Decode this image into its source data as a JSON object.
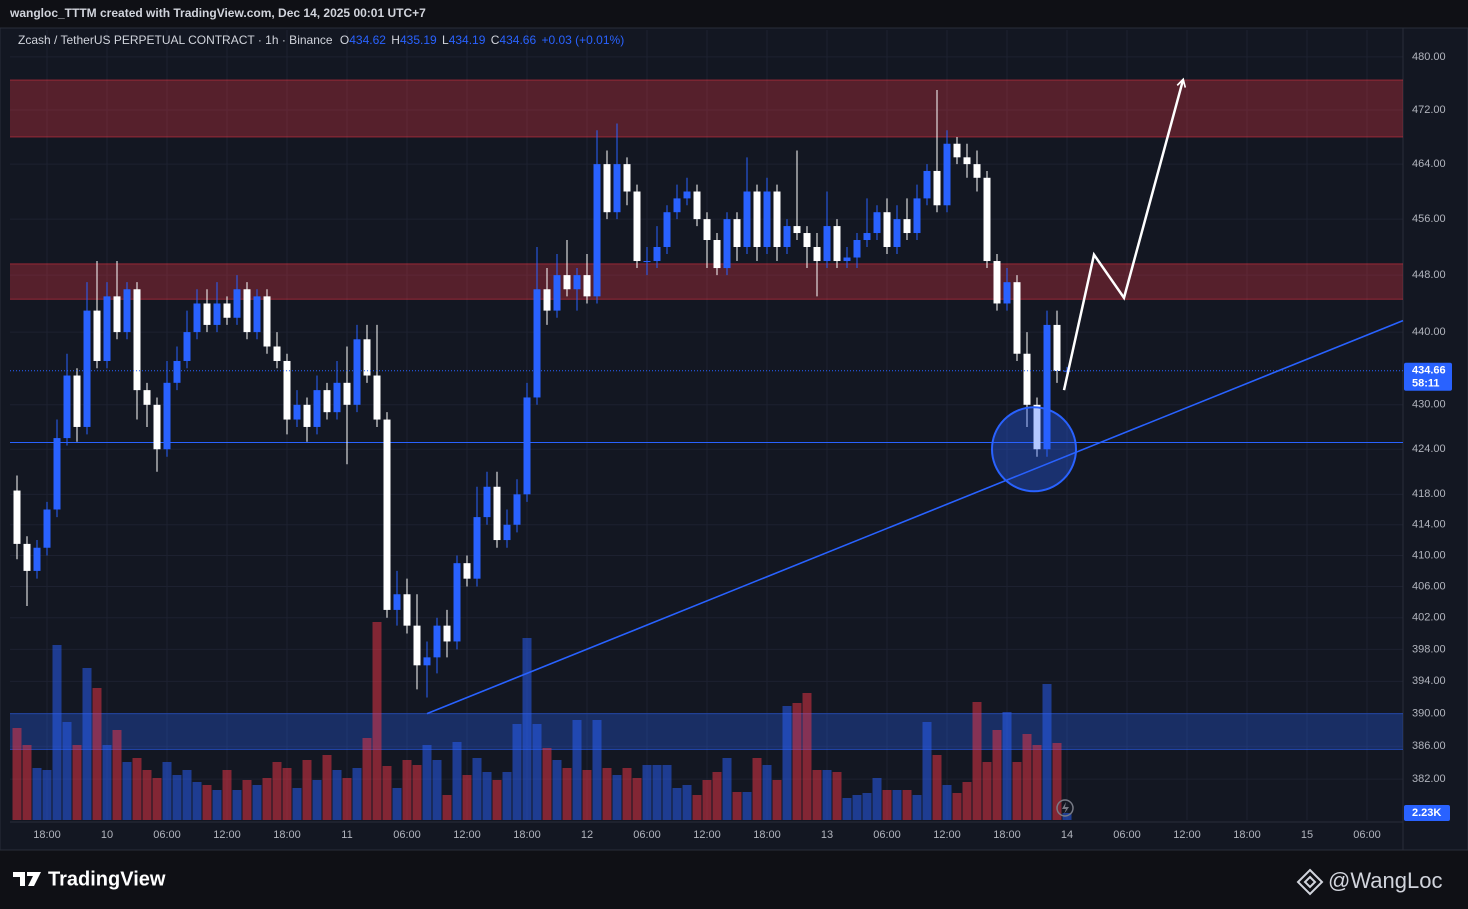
{
  "header": {
    "caption": "wangloc_TTTM created with TradingView.com, Dec 14, 2025 00:01 UTC+7"
  },
  "chart_data": {
    "type": "candlestick",
    "symbol": "Zcash / TetherUS PERPETUAL CONTRACT · 1h · Binance",
    "ohlc_letters": [
      "O",
      "H",
      "L",
      "C"
    ],
    "change_label": "+0.03 (+0.01%)",
    "countdown": "58:11",
    "volume_label": "2.23K",
    "log_scale": true,
    "grid": true,
    "up_color": "#2962ff",
    "down_color": "#ffffff",
    "volume_up_color": "#2962ff",
    "volume_down_color": "#f23645",
    "xlim": [
      -0.7,
      138.6
    ],
    "ylim": [
      377.1,
      484.1
    ],
    "volume_ylim": [
      0,
      252800
    ],
    "xticks": [
      {
        "value": 3,
        "label": "18:00"
      },
      {
        "value": 9,
        "label": "10"
      },
      {
        "value": 15,
        "label": "06:00"
      },
      {
        "value": 21,
        "label": "12:00"
      },
      {
        "value": 27,
        "label": "18:00"
      },
      {
        "value": 33,
        "label": "11"
      },
      {
        "value": 39,
        "label": "06:00"
      },
      {
        "value": 45,
        "label": "12:00"
      },
      {
        "value": 51,
        "label": "18:00"
      },
      {
        "value": 57,
        "label": "12"
      },
      {
        "value": 63,
        "label": "06:00"
      },
      {
        "value": 69,
        "label": "12:00"
      },
      {
        "value": 75,
        "label": "18:00"
      },
      {
        "value": 81,
        "label": "13"
      },
      {
        "value": 87,
        "label": "06:00"
      },
      {
        "value": 93,
        "label": "12:00"
      },
      {
        "value": 99,
        "label": "18:00"
      },
      {
        "value": 105,
        "label": "14"
      },
      {
        "value": 111,
        "label": "06:00"
      },
      {
        "value": 117,
        "label": "12:00"
      },
      {
        "value": 123,
        "label": "18:00"
      },
      {
        "value": 129,
        "label": "15"
      },
      {
        "value": 135,
        "label": "06:00"
      }
    ],
    "yticks": [
      {
        "value": 480,
        "label": "480.00"
      },
      {
        "value": 472,
        "label": "472.00"
      },
      {
        "value": 464,
        "label": "464.00"
      },
      {
        "value": 456,
        "label": "456.00"
      },
      {
        "value": 448,
        "label": "448.00"
      },
      {
        "value": 440,
        "label": "440.00"
      },
      {
        "value": 430,
        "label": "430.00"
      },
      {
        "value": 424,
        "label": "424.00"
      },
      {
        "value": 418,
        "label": "418.00"
      },
      {
        "value": 414,
        "label": "414.00"
      },
      {
        "value": 410,
        "label": "410.00"
      },
      {
        "value": 406,
        "label": "406.00"
      },
      {
        "value": 402,
        "label": "402.00"
      },
      {
        "value": 398,
        "label": "398.00"
      },
      {
        "value": 394,
        "label": "394.00"
      },
      {
        "value": 390,
        "label": "390.00"
      },
      {
        "value": 386,
        "label": "386.00"
      },
      {
        "value": 382,
        "label": "382.00"
      }
    ],
    "open": [
      418.5,
      411.5,
      408,
      411,
      416,
      425.5,
      434,
      427,
      443,
      436,
      445,
      440,
      446,
      432,
      430,
      424,
      433,
      436,
      440,
      444,
      441,
      444,
      442,
      446,
      440,
      445,
      438,
      436,
      428,
      430,
      427,
      432,
      429,
      433,
      430,
      439,
      434,
      428,
      403,
      405,
      401,
      396,
      397,
      401,
      399,
      409,
      407,
      415,
      419,
      412,
      414,
      418,
      431,
      446,
      443,
      448,
      446,
      448,
      445,
      464,
      457,
      464,
      460,
      450,
      450,
      452,
      457,
      459,
      460,
      456,
      453,
      449,
      456,
      452,
      460,
      452,
      460,
      452,
      455,
      454,
      452,
      450,
      455,
      450,
      450.5,
      453,
      454,
      457,
      452,
      456,
      454,
      459,
      463,
      458,
      467,
      465,
      464,
      462,
      450,
      444,
      447,
      437,
      430,
      424,
      441,
      434.62
    ],
    "high": [
      420.5,
      412.5,
      412,
      417,
      428,
      437,
      435,
      447,
      450,
      447,
      450,
      447,
      447,
      433,
      431,
      436,
      438,
      443,
      446,
      446,
      447,
      445,
      448,
      447,
      446,
      446,
      440,
      437,
      432,
      431,
      434,
      433,
      436,
      438,
      441,
      441,
      441,
      429,
      408,
      407,
      405,
      399,
      402,
      403,
      410,
      410,
      419,
      421,
      421,
      416,
      420,
      433,
      452,
      449,
      451,
      453,
      449,
      451,
      469,
      466,
      470,
      465,
      461,
      452,
      455,
      458,
      461,
      462,
      461,
      457,
      454,
      457,
      457,
      465,
      461,
      462,
      461,
      456,
      466,
      455,
      454,
      460,
      456,
      452,
      454,
      459,
      458,
      459,
      458,
      459,
      461,
      464,
      475,
      469,
      468,
      467,
      466,
      463,
      451,
      449,
      448,
      440,
      431,
      443,
      443,
      435.19
    ],
    "low": [
      409.5,
      403.5,
      407,
      410,
      415,
      424.5,
      425,
      426,
      435,
      435,
      439,
      439,
      428,
      427,
      421,
      423,
      432,
      435,
      439,
      440,
      440,
      441,
      441,
      439,
      439,
      437,
      435,
      426,
      427,
      425,
      426,
      428,
      428,
      422,
      429,
      433,
      427,
      402,
      401,
      400,
      393,
      392,
      395,
      397,
      398,
      406,
      406,
      414,
      411,
      411,
      413,
      417,
      430,
      441,
      442,
      445,
      443,
      444,
      444,
      456,
      456,
      458,
      449,
      448,
      449,
      451,
      456,
      458,
      455,
      449,
      448,
      448,
      450,
      451,
      450,
      451,
      450,
      451,
      453,
      449,
      445,
      449,
      449,
      449,
      449,
      452,
      453,
      451,
      451,
      453,
      453,
      458,
      457,
      457,
      464,
      462,
      460,
      449,
      443,
      443,
      436,
      427,
      423,
      423,
      433,
      434.19
    ],
    "close": [
      411.5,
      408,
      411,
      416,
      425.5,
      434,
      427,
      443,
      436,
      445,
      440,
      446,
      432,
      430,
      424,
      433,
      436,
      440,
      444,
      441,
      444,
      442,
      446,
      440,
      445,
      438,
      436,
      428,
      430,
      427,
      432,
      429,
      433,
      430,
      439,
      434,
      428,
      403,
      405,
      401,
      396,
      397,
      401,
      399,
      409,
      407,
      415,
      419,
      412,
      414,
      418,
      431,
      446,
      443,
      448,
      446,
      448,
      445,
      464,
      457,
      464,
      460,
      450,
      450,
      452,
      457,
      459,
      460,
      456,
      453,
      449,
      456,
      452,
      460,
      452,
      460,
      452,
      455,
      454,
      452,
      450,
      455,
      450,
      450.5,
      453,
      454,
      457,
      452,
      456,
      454,
      459,
      463,
      458,
      467,
      465,
      464,
      462,
      450,
      444,
      447,
      437,
      430,
      424,
      441,
      434.62,
      434.66
    ],
    "volume": [
      29440,
      24000,
      16640,
      16000,
      56000,
      31360,
      24000,
      48640,
      42240,
      24000,
      28800,
      18560,
      19840,
      16000,
      13440,
      18560,
      14400,
      16000,
      12160,
      11200,
      9600,
      16000,
      9600,
      12800,
      11200,
      13440,
      18560,
      16640,
      10240,
      19200,
      12800,
      20800,
      16000,
      13440,
      16640,
      26240,
      63360,
      17280,
      10240,
      19200,
      17600,
      24000,
      19200,
      8000,
      24960,
      14400,
      19840,
      15360,
      12800,
      15360,
      30720,
      58240,
      30720,
      23040,
      19200,
      16640,
      32000,
      16000,
      32000,
      16640,
      14400,
      16640,
      13440,
      17600,
      17600,
      17600,
      10240,
      11200,
      8000,
      12800,
      15360,
      19840,
      8960,
      8960,
      19840,
      17600,
      12800,
      36480,
      37440,
      40640,
      16000,
      16000,
      15360,
      7040,
      8000,
      8640,
      13440,
      9600,
      9600,
      9600,
      8000,
      31360,
      20800,
      11200,
      8640,
      12160,
      37760,
      18560,
      28800,
      34560,
      18560,
      27520,
      24000,
      43520,
      24640,
      2230
    ],
    "zones": [
      {
        "top": 476.5,
        "bottom": 468,
        "color": "#f23645"
      },
      {
        "top": 449.6,
        "bottom": 444.6,
        "color": "#f23645"
      },
      {
        "top": 390,
        "bottom": 385.6,
        "color": "#2962ff"
      }
    ],
    "hlines": [
      {
        "y": 424.9,
        "color": "#2962ff"
      }
    ],
    "trendline": {
      "x": [
        41,
        138.6
      ],
      "y": [
        390,
        441.6
      ],
      "color": "#2962ff"
    },
    "highlight": {
      "x": 101.7,
      "y": 424,
      "color": "#2962ff"
    },
    "arrow": {
      "x": [
        104.7,
        107.7,
        110.7,
        116.6
      ],
      "y": [
        432,
        450.9,
        444.8,
        476.5
      ],
      "color": "#ffffff"
    }
  },
  "footer": {
    "brand": "TradingView",
    "author": "@WangLoc"
  }
}
